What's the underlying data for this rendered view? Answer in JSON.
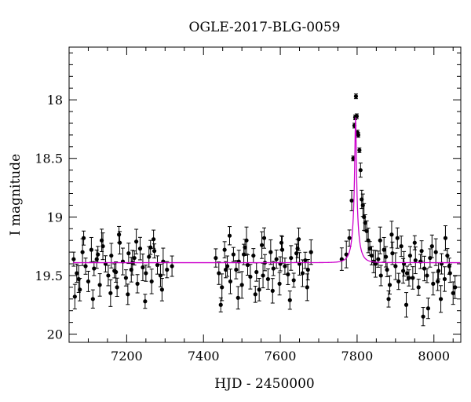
{
  "chart_data": {
    "type": "scatter",
    "title": "OGLE-2017-BLG-0059",
    "xlabel": "HJD - 2450000",
    "ylabel": "I magnitude",
    "xlim": [
      7050,
      8070
    ],
    "ylim": [
      20.07,
      17.55
    ],
    "y_inverted": true,
    "x_ticks": [
      7200,
      7400,
      7600,
      7800,
      8000
    ],
    "y_ticks": [
      18,
      18.5,
      19,
      19.5,
      20
    ],
    "x_tick_labels": [
      "7200",
      "7400",
      "7600",
      "7800",
      "8000"
    ],
    "y_tick_labels": [
      "18",
      "18.5",
      "19",
      "19.5",
      "20"
    ],
    "grid": false,
    "colors": {
      "points": "#000000",
      "model": "#cc00cc"
    },
    "model": {
      "type": "microlensing-fit",
      "baseline_mag": 19.39,
      "peak_hjd": 7796,
      "peak_mag": 18.15
    },
    "series": [
      {
        "type": "scatter",
        "x": [
          7062,
          7070,
          7078,
          7085,
          7093,
          7100,
          7108,
          7115,
          7122,
          7130,
          7138,
          7145,
          7152,
          7160,
          7168,
          7175,
          7182,
          7190,
          7198,
          7205,
          7212,
          7220,
          7228,
          7235,
          7242,
          7250,
          7258,
          7265,
          7272,
          7280,
          7288,
          7295,
          7305,
          7318,
          7065,
          7088,
          7112,
          7135,
          7158,
          7180,
          7203,
          7225,
          7248,
          7270,
          7292,
          7075,
          7125,
          7172,
          7215,
          7262,
          7432,
          7440,
          7448,
          7455,
          7462,
          7470,
          7478,
          7485,
          7492,
          7500,
          7508,
          7515,
          7522,
          7530,
          7538,
          7545,
          7552,
          7560,
          7568,
          7575,
          7582,
          7590,
          7598,
          7605,
          7612,
          7620,
          7628,
          7635,
          7642,
          7650,
          7658,
          7665,
          7672,
          7680,
          7445,
          7468,
          7490,
          7512,
          7535,
          7558,
          7580,
          7603,
          7625,
          7648,
          7670,
          7458,
          7505,
          7555,
          7600,
          7645,
          7760,
          7772,
          7780,
          7786,
          7790,
          7793,
          7795,
          7797,
          7799,
          7801,
          7803,
          7806,
          7809,
          7812,
          7815,
          7818,
          7821,
          7825,
          7829,
          7833,
          7838,
          7843,
          7848,
          7855,
          7862,
          7870,
          7878,
          7885,
          7892,
          7900,
          7908,
          7915,
          7922,
          7930,
          7938,
          7945,
          7952,
          7960,
          7968,
          7975,
          7982,
          7990,
          7998,
          8005,
          8012,
          8020,
          8028,
          8035,
          8042,
          8050,
          7860,
          7882,
          7905,
          7928,
          7950,
          7972,
          7995,
          8018,
          8040,
          7875,
          7920,
          7965,
          8010,
          8055,
          7890,
          7935,
          7985,
          8030
        ],
        "y": [
          19.36,
          19.48,
          19.62,
          19.3,
          19.42,
          19.55,
          19.28,
          19.44,
          19.36,
          19.58,
          19.25,
          19.4,
          19.5,
          19.33,
          19.46,
          19.6,
          19.22,
          19.38,
          19.52,
          19.31,
          19.45,
          19.35,
          19.57,
          19.27,
          19.43,
          19.48,
          19.34,
          19.55,
          19.29,
          19.41,
          19.5,
          19.38,
          19.45,
          19.42,
          19.68,
          19.18,
          19.7,
          19.2,
          19.65,
          19.15,
          19.66,
          19.21,
          19.72,
          19.19,
          19.62,
          19.53,
          19.32,
          19.47,
          19.39,
          19.26,
          19.35,
          19.48,
          19.6,
          19.28,
          19.42,
          19.55,
          19.32,
          19.45,
          19.38,
          19.58,
          19.26,
          19.41,
          19.51,
          19.33,
          19.47,
          19.62,
          19.24,
          19.39,
          19.53,
          19.3,
          19.44,
          19.36,
          19.57,
          19.28,
          19.42,
          19.49,
          19.35,
          19.54,
          19.31,
          19.4,
          19.48,
          19.37,
          19.45,
          19.3,
          19.75,
          19.16,
          19.69,
          19.2,
          19.66,
          19.18,
          19.63,
          19.22,
          19.71,
          19.19,
          19.6,
          19.45,
          19.32,
          19.5,
          19.4,
          19.27,
          19.36,
          19.32,
          19.18,
          18.86,
          18.5,
          18.22,
          18.15,
          17.97,
          18.14,
          18.28,
          18.3,
          18.43,
          18.6,
          18.85,
          18.9,
          19.0,
          19.05,
          19.12,
          19.2,
          19.27,
          19.33,
          19.38,
          19.4,
          19.36,
          19.5,
          19.28,
          19.45,
          19.58,
          19.31,
          19.42,
          19.55,
          19.25,
          19.4,
          19.48,
          19.33,
          19.52,
          19.37,
          19.6,
          19.29,
          19.44,
          19.5,
          19.35,
          19.57,
          19.3,
          19.46,
          19.4,
          19.53,
          19.33,
          19.48,
          19.65,
          19.2,
          19.7,
          19.18,
          19.75,
          19.22,
          19.85,
          19.25,
          19.7,
          19.42,
          19.34,
          19.46,
          19.38,
          19.55,
          19.6,
          19.15,
          19.52,
          19.78,
          19.18
        ]
      }
    ]
  }
}
